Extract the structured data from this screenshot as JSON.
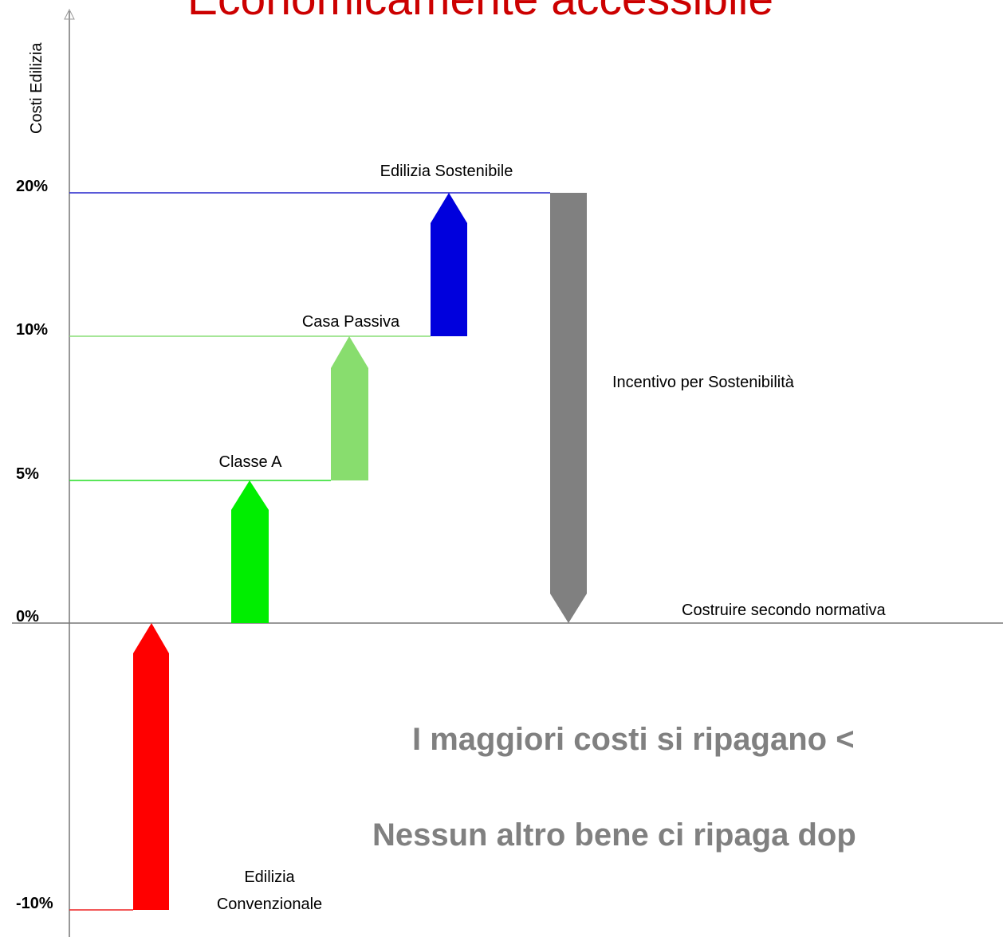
{
  "title": "Economicamente accessibile",
  "y_axis_label": "Costi Edilizia",
  "levels": [
    "20%",
    "10%",
    "5%",
    "0%",
    "-10%"
  ],
  "steps": [
    {
      "label": [
        "Edilizia Sostenibile"
      ]
    },
    {
      "label": [
        "Casa Passiva"
      ]
    },
    {
      "label": [
        "Classe A"
      ]
    },
    {
      "label": [
        "Edilizia",
        "Convenzionale"
      ]
    }
  ],
  "incentive_label": "Incentivo per Sostenibilità",
  "baseline_label": "Costruire secondo normativa",
  "notes": [
    "I maggiori costi si ripagano <",
    "Nessun altro bene ci ripaga dop"
  ]
}
